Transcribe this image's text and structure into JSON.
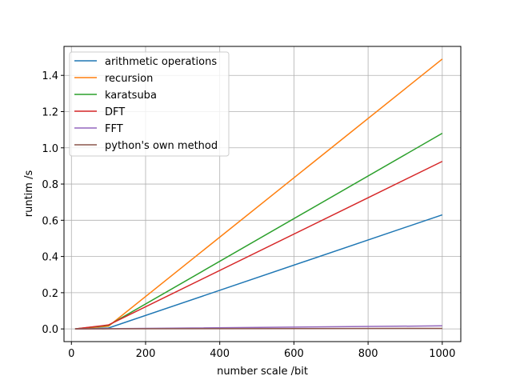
{
  "chart_data": {
    "type": "line",
    "title": "",
    "xlabel": "number scale /bit",
    "ylabel": "runtim /s",
    "xlim": [
      -20,
      1050
    ],
    "ylim": [
      -0.07,
      1.56
    ],
    "xticks": [
      0,
      200,
      400,
      600,
      800,
      1000
    ],
    "yticks": [
      0.0,
      0.2,
      0.4,
      0.6,
      0.8,
      1.0,
      1.2,
      1.4
    ],
    "xtick_labels": [
      "0",
      "200",
      "400",
      "600",
      "800",
      "1000"
    ],
    "ytick_labels": [
      "0.0",
      "0.2",
      "0.4",
      "0.6",
      "0.8",
      "1.0",
      "1.2",
      "1.4"
    ],
    "grid": true,
    "legend_position": "top-left",
    "x": [
      10,
      100,
      1000
    ],
    "series": [
      {
        "name": "arithmetic operations",
        "color": "#1f77b4",
        "values": [
          0.0,
          0.005,
          0.63
        ]
      },
      {
        "name": "recursion",
        "color": "#ff7f0e",
        "values": [
          0.0,
          0.015,
          1.49
        ]
      },
      {
        "name": "karatsuba",
        "color": "#2ca02c",
        "values": [
          0.0,
          0.02,
          1.08
        ]
      },
      {
        "name": "DFT",
        "color": "#d62728",
        "values": [
          0.0,
          0.022,
          0.925
        ]
      },
      {
        "name": "FFT",
        "color": "#9467bd",
        "values": [
          0.0,
          0.001,
          0.017
        ]
      },
      {
        "name": "python's own method",
        "color": "#8c564b",
        "values": [
          0.0,
          0.0005,
          0.003
        ]
      }
    ]
  }
}
